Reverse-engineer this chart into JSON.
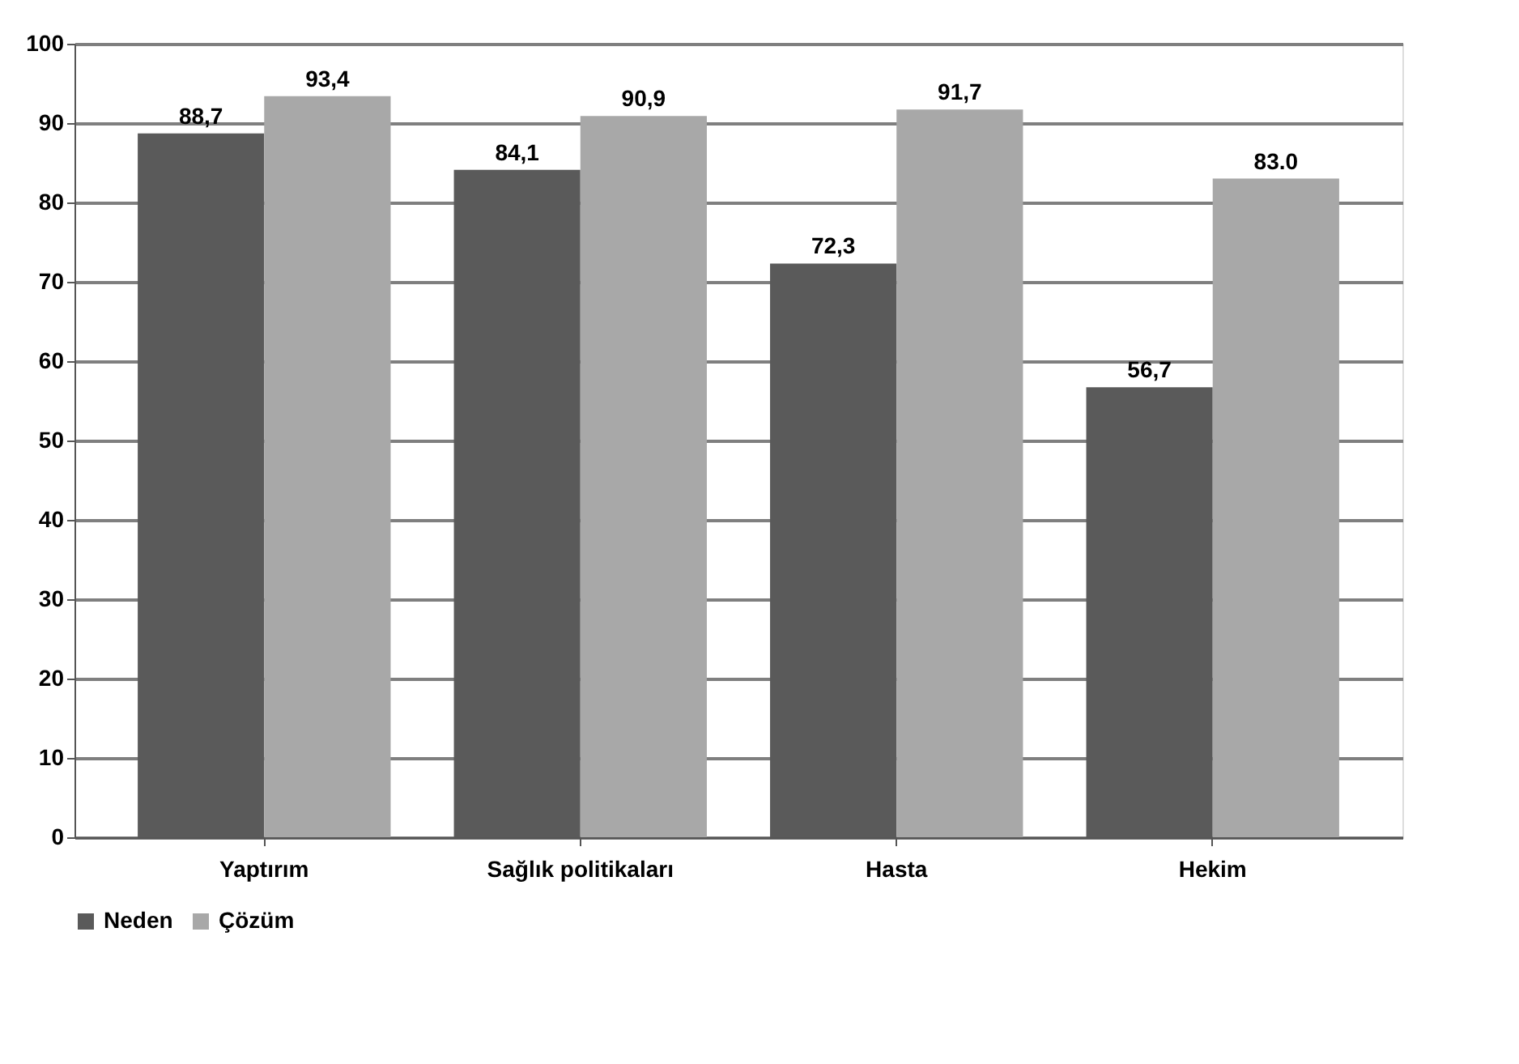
{
  "chart_data": {
    "type": "bar",
    "categories": [
      "Yaptırım",
      "Sağlık politikaları",
      "Hasta",
      "Hekim"
    ],
    "series": [
      {
        "name": "Neden",
        "color": "#5a5a5a",
        "values": [
          88.7,
          84.1,
          72.3,
          56.7
        ],
        "value_labels": [
          "88,7",
          "84,1",
          "72,3",
          "56,7"
        ]
      },
      {
        "name": "Çözüm",
        "color": "#a8a8a8",
        "values": [
          93.4,
          90.9,
          91.7,
          83.0
        ],
        "value_labels": [
          "93,4",
          "90,9",
          "91,7",
          "83.0"
        ]
      }
    ],
    "ylim": [
      0,
      100
    ],
    "yticks": [
      0,
      10,
      20,
      30,
      40,
      50,
      60,
      70,
      80,
      90,
      100
    ],
    "grid": "y",
    "legend": "bottom"
  }
}
